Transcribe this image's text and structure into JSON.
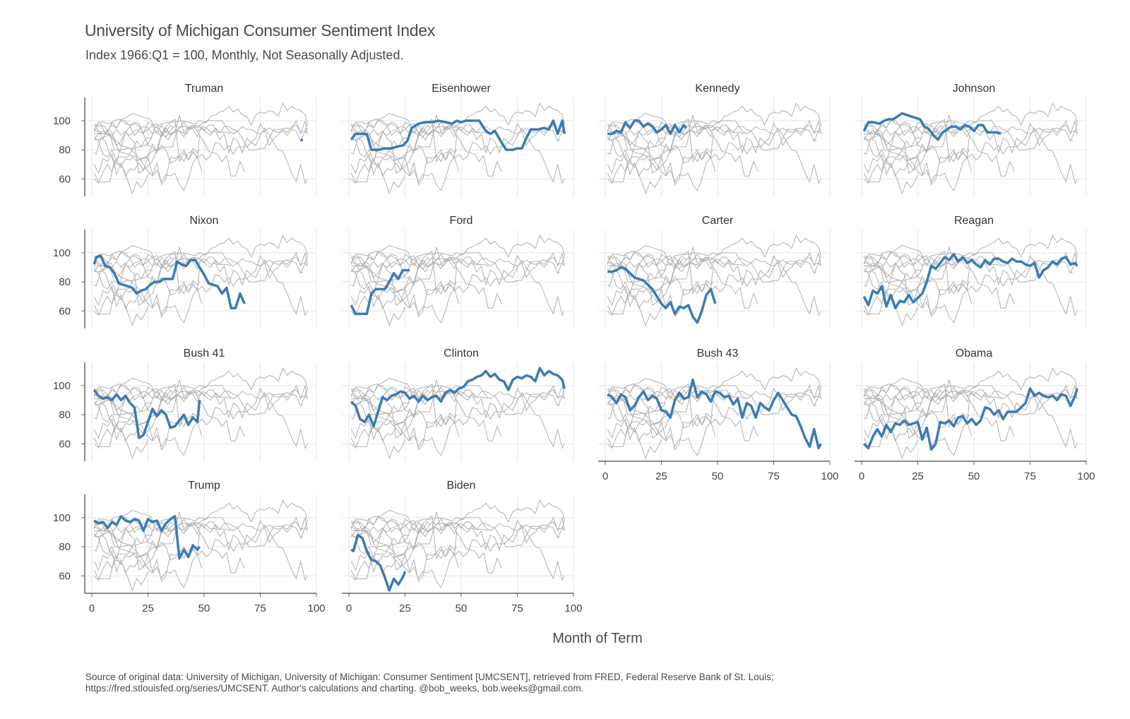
{
  "title": "University of Michigan Consumer Sentiment Index",
  "subtitle": "Index 1966:Q1 = 100, Monthly, Not Seasonally Adjusted.",
  "xlabel": "Month of Term",
  "caption_line1": "Source of original data: University of Michigan, University of Michigan: Consumer Sentiment [UMCSENT], retrieved from FRED, Federal Reserve Bank of St. Louis;",
  "caption_line2": "https://fred.stlouisfed.org/series/UMCSENT. Author's calculations and charting. @bob_weeks, bob.weeks@gmail.com.",
  "colors": {
    "highlight": "#3b7bb4",
    "background_series": "#b0b0b0",
    "grid": "#e6e6e6",
    "axis": "#666666"
  },
  "chart_data": {
    "type": "line",
    "layout": "small-multiples",
    "xlim": [
      0,
      100
    ],
    "ylim": [
      48,
      116
    ],
    "xticks": [
      0,
      25,
      50,
      75,
      100
    ],
    "yticks": [
      60,
      80,
      100
    ],
    "grid": true,
    "panels": [
      {
        "name": "Truman",
        "x": [
          93,
          94
        ],
        "y": [
          86.8,
          86.5
        ]
      },
      {
        "name": "Eisenhower",
        "x": [
          1,
          3,
          5,
          8,
          10,
          13,
          16,
          19,
          21,
          24,
          26,
          28,
          31,
          34,
          37,
          40,
          43,
          46,
          48,
          50,
          52,
          54,
          56,
          58,
          61,
          63,
          65,
          68,
          70,
          73,
          75,
          77,
          79,
          81,
          84,
          87,
          89,
          91,
          93,
          95,
          96
        ],
        "y": [
          87,
          91,
          91,
          91,
          80,
          80,
          81,
          81,
          82,
          83,
          86,
          95,
          98,
          99,
          99,
          100,
          99,
          98,
          100,
          99,
          100,
          100,
          100,
          100,
          93,
          91,
          93,
          85,
          80,
          80,
          81,
          81,
          88,
          94,
          94,
          95,
          94,
          100,
          91,
          100,
          91
        ]
      },
      {
        "name": "Kennedy",
        "x": [
          1,
          3,
          5,
          7,
          9,
          11,
          13,
          15,
          17,
          19,
          21,
          23,
          25,
          27,
          29,
          31,
          33,
          35,
          36
        ],
        "y": [
          91,
          91,
          93,
          92,
          99,
          95,
          100,
          100,
          96,
          98,
          96,
          92,
          94,
          97,
          91,
          97,
          92,
          97,
          95
        ]
      },
      {
        "name": "Johnson",
        "x": [
          1,
          3,
          5,
          8,
          10,
          12,
          14,
          16,
          18,
          20,
          22,
          24,
          26,
          28,
          30,
          32,
          34,
          36,
          38,
          40,
          42,
          44,
          46,
          48,
          50,
          52,
          54,
          56,
          58,
          60,
          62
        ],
        "y": [
          93,
          99,
          99,
          98,
          100,
          101,
          101,
          103,
          105,
          104,
          103,
          102,
          101,
          96,
          94,
          90,
          87,
          92,
          94,
          96,
          96,
          94,
          97,
          96,
          93,
          97,
          97,
          92,
          92,
          92,
          91
        ]
      },
      {
        "name": "Nixon",
        "x": [
          1,
          2,
          4,
          6,
          8,
          10,
          12,
          14,
          16,
          18,
          20,
          22,
          24,
          26,
          28,
          30,
          32,
          34,
          36,
          38,
          40,
          42,
          44,
          46,
          48,
          50,
          52,
          54,
          56,
          58,
          60,
          62,
          64,
          66,
          68
        ],
        "y": [
          92,
          97,
          98,
          91,
          90,
          86,
          79,
          78,
          77,
          76,
          72,
          74,
          75,
          78,
          80,
          80,
          82,
          82,
          82,
          94,
          92,
          91,
          95,
          95,
          90,
          85,
          79,
          78,
          77,
          72,
          76,
          62,
          62,
          72,
          65
        ]
      },
      {
        "name": "Ford",
        "x": [
          1,
          3,
          5,
          8,
          10,
          12,
          14,
          16,
          18,
          20,
          22,
          24,
          26,
          27
        ],
        "y": [
          64,
          58,
          58,
          58,
          72,
          75,
          75,
          75,
          80,
          86,
          82,
          88,
          88,
          88
        ]
      },
      {
        "name": "Carter",
        "x": [
          1,
          3,
          5,
          7,
          9,
          11,
          13,
          15,
          17,
          19,
          21,
          23,
          25,
          27,
          29,
          31,
          33,
          35,
          37,
          39,
          41,
          43,
          45,
          47,
          49
        ],
        "y": [
          87,
          87,
          88,
          90,
          89,
          86,
          83,
          82,
          81,
          78,
          75,
          70,
          65,
          62,
          66,
          58,
          63,
          62,
          64,
          56,
          52,
          60,
          71,
          75,
          65
        ]
      },
      {
        "name": "Reagan",
        "x": [
          1,
          3,
          5,
          7,
          9,
          11,
          13,
          15,
          17,
          19,
          21,
          23,
          25,
          27,
          29,
          31,
          33,
          35,
          37,
          39,
          41,
          43,
          45,
          47,
          49,
          51,
          53,
          55,
          57,
          59,
          61,
          63,
          65,
          67,
          69,
          71,
          73,
          75,
          77,
          79,
          81,
          83,
          85,
          87,
          89,
          91,
          93,
          95,
          96
        ],
        "y": [
          70,
          64,
          74,
          72,
          77,
          63,
          71,
          62,
          67,
          66,
          71,
          66,
          69,
          72,
          80,
          91,
          89,
          93,
          97,
          95,
          99,
          94,
          97,
          93,
          95,
          92,
          90,
          95,
          92,
          96,
          96,
          94,
          93,
          96,
          94,
          94,
          92,
          91,
          93,
          83,
          88,
          90,
          94,
          92,
          96,
          97,
          92,
          93,
          91
        ]
      },
      {
        "name": "Bush 41",
        "x": [
          1,
          3,
          5,
          7,
          9,
          11,
          13,
          15,
          17,
          19,
          21,
          23,
          25,
          27,
          29,
          31,
          33,
          35,
          37,
          39,
          41,
          43,
          45,
          47,
          48
        ],
        "y": [
          97,
          93,
          91,
          92,
          90,
          94,
          90,
          93,
          88,
          85,
          64,
          66,
          75,
          84,
          79,
          83,
          80,
          71,
          72,
          76,
          80,
          73,
          78,
          75,
          90
        ]
      },
      {
        "name": "Clinton",
        "x": [
          1,
          3,
          5,
          7,
          9,
          11,
          13,
          15,
          17,
          19,
          21,
          23,
          25,
          27,
          29,
          31,
          33,
          35,
          37,
          39,
          41,
          43,
          45,
          47,
          49,
          51,
          53,
          55,
          57,
          59,
          61,
          63,
          65,
          67,
          69,
          71,
          73,
          75,
          77,
          79,
          81,
          83,
          85,
          87,
          89,
          91,
          93,
          95,
          96
        ],
        "y": [
          89,
          86,
          77,
          75,
          80,
          72,
          82,
          92,
          90,
          93,
          94,
          96,
          95,
          91,
          93,
          89,
          93,
          90,
          92,
          93,
          89,
          95,
          97,
          95,
          98,
          99,
          103,
          104,
          106,
          107,
          110,
          106,
          108,
          104,
          103,
          97,
          104,
          106,
          105,
          107,
          106,
          103,
          112,
          107,
          110,
          108,
          107,
          104,
          98
        ]
      },
      {
        "name": "Bush 43",
        "x": [
          1,
          3,
          5,
          7,
          9,
          11,
          13,
          15,
          17,
          19,
          21,
          23,
          25,
          27,
          29,
          31,
          33,
          35,
          37,
          39,
          41,
          43,
          45,
          47,
          49,
          51,
          53,
          55,
          57,
          59,
          61,
          63,
          65,
          67,
          69,
          71,
          73,
          75,
          77,
          79,
          81,
          83,
          85,
          87,
          89,
          91,
          93,
          95,
          96
        ],
        "y": [
          94,
          92,
          88,
          94,
          92,
          83,
          86,
          92,
          96,
          90,
          93,
          91,
          83,
          82,
          78,
          90,
          95,
          91,
          92,
          104,
          92,
          96,
          94,
          89,
          96,
          95,
          92,
          93,
          87,
          91,
          78,
          88,
          86,
          78,
          88,
          85,
          83,
          90,
          95,
          90,
          85,
          80,
          79,
          72,
          64,
          58,
          70,
          57,
          60
        ]
      },
      {
        "name": "Obama",
        "x": [
          1,
          3,
          5,
          7,
          9,
          11,
          13,
          15,
          17,
          19,
          21,
          23,
          25,
          27,
          29,
          31,
          33,
          35,
          37,
          39,
          41,
          43,
          45,
          47,
          49,
          51,
          53,
          55,
          57,
          59,
          61,
          63,
          65,
          67,
          69,
          71,
          73,
          75,
          77,
          79,
          81,
          83,
          85,
          87,
          89,
          91,
          93,
          95,
          96
        ],
        "y": [
          60,
          57,
          65,
          70,
          65,
          73,
          68,
          74,
          73,
          76,
          73,
          74,
          75,
          63,
          71,
          56,
          60,
          75,
          74,
          76,
          72,
          78,
          79,
          74,
          77,
          73,
          76,
          85,
          84,
          80,
          83,
          77,
          82,
          82,
          82,
          85,
          88,
          98,
          93,
          95,
          93,
          92,
          93,
          90,
          94,
          93,
          86,
          93,
          98
        ]
      },
      {
        "name": "Trump",
        "x": [
          1,
          3,
          5,
          7,
          9,
          11,
          13,
          15,
          17,
          19,
          21,
          23,
          25,
          27,
          29,
          31,
          33,
          35,
          37,
          39,
          41,
          43,
          45,
          47,
          48
        ],
        "y": [
          98,
          96,
          97,
          93,
          97,
          95,
          101,
          98,
          97,
          99,
          98,
          91,
          99,
          97,
          98,
          91,
          96,
          99,
          101,
          72,
          78,
          73,
          81,
          78,
          80
        ]
      },
      {
        "name": "Biden",
        "x": [
          1,
          2,
          4,
          6,
          8,
          10,
          12,
          14,
          16,
          18,
          20,
          22,
          24,
          25
        ],
        "y": [
          78,
          77,
          88,
          86,
          77,
          71,
          70,
          67,
          59,
          50,
          58,
          54,
          59,
          63
        ]
      }
    ]
  }
}
